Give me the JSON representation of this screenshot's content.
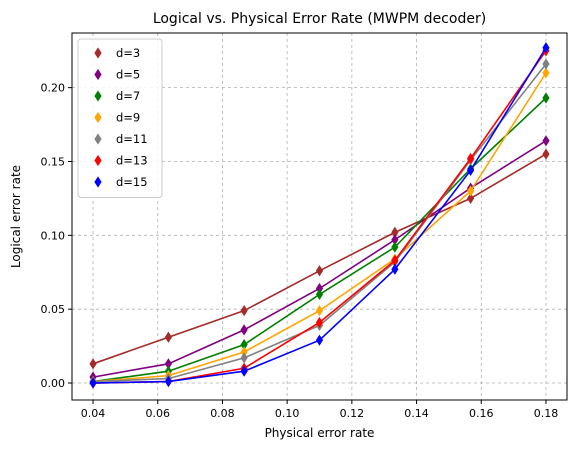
{
  "chart_data": {
    "type": "line",
    "title": "Logical vs. Physical Error Rate (MWPM decoder)",
    "xlabel": "Physical error rate",
    "ylabel": "Logical error rate",
    "xlim": [
      0.0335,
      0.1865
    ],
    "ylim": [
      -0.0115,
      0.237
    ],
    "xticks": [
      0.04,
      0.06,
      0.08,
      0.1,
      0.12,
      0.14,
      0.16,
      0.18
    ],
    "xtick_labels": [
      "0.04",
      "0.06",
      "0.08",
      "0.10",
      "0.12",
      "0.14",
      "0.16",
      "0.18"
    ],
    "yticks": [
      0.0,
      0.05,
      0.1,
      0.15,
      0.2
    ],
    "ytick_labels": [
      "0.00",
      "0.05",
      "0.10",
      "0.15",
      "0.20"
    ],
    "grid": true,
    "legend_position": "top-left",
    "marker": "thin-diamond",
    "x": [
      0.04,
      0.0633,
      0.0867,
      0.11,
      0.1333,
      0.1567,
      0.18
    ],
    "series": [
      {
        "name": "d=3",
        "color": "#a52a2a",
        "values": [
          0.013,
          0.031,
          0.049,
          0.076,
          0.102,
          0.125,
          0.155
        ]
      },
      {
        "name": "d=5",
        "color": "#800080",
        "values": [
          0.004,
          0.013,
          0.036,
          0.064,
          0.097,
          0.132,
          0.164
        ]
      },
      {
        "name": "d=7",
        "color": "#008000",
        "values": [
          0.001,
          0.008,
          0.026,
          0.06,
          0.092,
          0.145,
          0.193
        ]
      },
      {
        "name": "d=9",
        "color": "#ffa500",
        "values": [
          0.001,
          0.005,
          0.021,
          0.049,
          0.084,
          0.13,
          0.21
        ]
      },
      {
        "name": "d=11",
        "color": "#808080",
        "values": [
          0.001,
          0.003,
          0.017,
          0.039,
          0.082,
          0.151,
          0.216
        ]
      },
      {
        "name": "d=13",
        "color": "#ff0000",
        "values": [
          0.0,
          0.001,
          0.01,
          0.041,
          0.083,
          0.152,
          0.225
        ]
      },
      {
        "name": "d=15",
        "color": "#0000ff",
        "values": [
          0.0,
          0.001,
          0.008,
          0.029,
          0.077,
          0.144,
          0.227
        ]
      }
    ]
  }
}
